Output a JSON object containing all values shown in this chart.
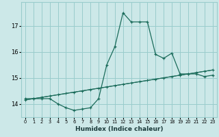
{
  "xlabel": "Humidex (Indice chaleur)",
  "bg_color": "#cce8e8",
  "grid_color": "#99cccc",
  "line_color": "#1a6b5a",
  "x_ticks": [
    0,
    1,
    2,
    3,
    4,
    5,
    6,
    7,
    8,
    9,
    10,
    11,
    12,
    13,
    14,
    15,
    16,
    17,
    18,
    19,
    20,
    21,
    22,
    23
  ],
  "y_ticks": [
    14,
    15,
    16,
    17
  ],
  "ylim": [
    13.5,
    17.9
  ],
  "xlim": [
    -0.5,
    23.5
  ],
  "curve1_x": [
    0,
    1,
    2,
    3,
    4,
    5,
    6,
    7,
    8,
    9,
    10,
    11,
    12,
    13,
    14,
    15,
    16,
    17,
    18,
    19,
    20,
    21,
    22,
    23
  ],
  "curve1_y": [
    14.2,
    14.2,
    14.2,
    14.2,
    14.0,
    13.85,
    13.75,
    13.8,
    13.85,
    14.2,
    15.5,
    16.2,
    17.5,
    17.15,
    17.15,
    17.15,
    15.9,
    15.75,
    15.95,
    15.15,
    15.15,
    15.15,
    15.05,
    15.1
  ],
  "curve2_x": [
    0,
    1,
    2,
    3,
    4,
    5,
    6,
    7,
    8,
    9,
    10,
    11,
    12,
    13,
    14,
    15,
    16,
    17,
    18,
    19,
    20,
    21,
    22,
    23
  ],
  "curve2_y": [
    14.15,
    14.2,
    14.25,
    14.3,
    14.35,
    14.4,
    14.45,
    14.5,
    14.55,
    14.6,
    14.65,
    14.7,
    14.75,
    14.8,
    14.85,
    14.9,
    14.95,
    15.0,
    15.05,
    15.1,
    15.15,
    15.2,
    15.25,
    15.3
  ],
  "curve3_x": [
    0,
    23
  ],
  "curve3_y": [
    14.15,
    15.3
  ]
}
